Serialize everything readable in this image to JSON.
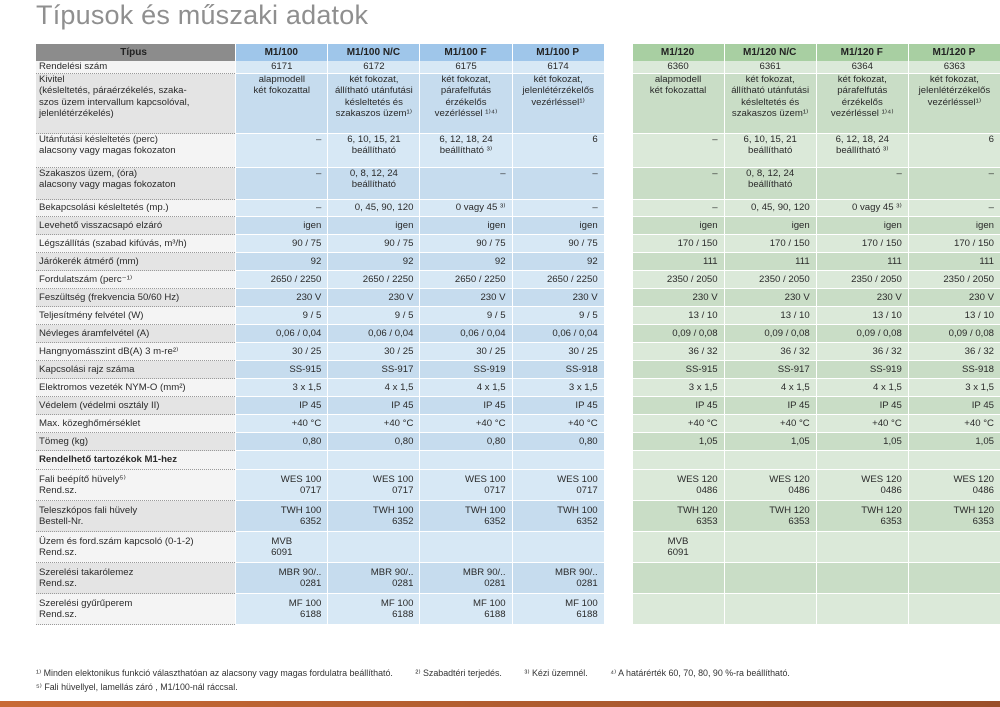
{
  "title": "Típusok és műszaki adatok",
  "header": {
    "label": "Típus",
    "blue": [
      "M1/100",
      "M1/100 N/C",
      "M1/100 F",
      "M1/100 P"
    ],
    "green": [
      "M1/120",
      "M1/120 N/C",
      "M1/120 F",
      "M1/120 P"
    ]
  },
  "rows": [
    {
      "label": [
        "Rendelési szám"
      ],
      "blue": [
        [
          "6171"
        ],
        [
          "6172"
        ],
        [
          "6175"
        ],
        [
          "6174"
        ]
      ],
      "green": [
        [
          "6360"
        ],
        [
          "6361"
        ],
        [
          "6364"
        ],
        [
          "6363"
        ]
      ],
      "center": true
    },
    {
      "label": [
        "Kivitel",
        "(késleltetés, páraérzékelés, szaka-",
        "szos üzem intervallum kapcsolóval,",
        "jelenlétérzékelés)"
      ],
      "blue": [
        [
          "alapmodell",
          "két fokozattal"
        ],
        [
          "két fokozat,",
          "állítható utánfutási",
          "késleltetés és",
          "szakaszos üzem¹⁾"
        ],
        [
          "két fokozat,",
          "párafelfutás",
          "érzékelős",
          "vezérléssel ¹⁾⁴⁾"
        ],
        [
          "két fokozat,",
          "jelenlétérzékelős",
          "vezérléssel¹⁾"
        ]
      ],
      "green": [
        [
          "alapmodell",
          "két fokozattal"
        ],
        [
          "két fokozat,",
          "állítható utánfutási",
          "késleltetés és",
          "szakaszos üzem¹⁾"
        ],
        [
          "két fokozat,",
          "párafelfutás",
          "érzékelős",
          "vezérléssel ¹⁾⁴⁾"
        ],
        [
          "két fokozat,",
          "jelenlétérzékelős",
          "vezérléssel¹⁾"
        ]
      ],
      "center": true,
      "top": true
    },
    {
      "label": [
        "Utánfutási késleltetés (perc)",
        "alacsony vagy magas fokozaton"
      ],
      "blue": [
        [
          "–"
        ],
        [
          "6, 10, 15, 21",
          "beállítható"
        ],
        [
          "6, 12, 18, 24",
          "beállítható ³⁾"
        ],
        [
          "6"
        ]
      ],
      "green": [
        [
          "–"
        ],
        [
          "6, 10, 15, 21",
          "beállítható"
        ],
        [
          "6, 12, 18, 24",
          "beállítható ³⁾"
        ],
        [
          "6"
        ]
      ],
      "top": true
    },
    {
      "label": [
        "Szakaszos üzem, (óra)",
        "alacsony vagy magas fokozaton"
      ],
      "blue": [
        [
          "–"
        ],
        [
          "0, 8, 12, 24",
          "beállítható"
        ],
        [
          "–"
        ],
        [
          "–"
        ]
      ],
      "green": [
        [
          "–"
        ],
        [
          "0, 8, 12, 24",
          "beállítható"
        ],
        [
          "–"
        ],
        [
          "–"
        ]
      ],
      "top": true
    },
    {
      "label": [
        "Bekapcsolási késleltetés (mp.)"
      ],
      "blue": [
        [
          "–"
        ],
        [
          "0, 45, 90, 120"
        ],
        [
          "0 vagy 45 ³⁾"
        ],
        [
          "–"
        ]
      ],
      "green": [
        [
          "–"
        ],
        [
          "0, 45, 90, 120"
        ],
        [
          "0 vagy 45 ³⁾"
        ],
        [
          "–"
        ]
      ]
    },
    {
      "label": [
        "Levehető visszacsapó elzáró"
      ],
      "blue": [
        [
          "igen"
        ],
        [
          "igen"
        ],
        [
          "igen"
        ],
        [
          "igen"
        ]
      ],
      "green": [
        [
          "igen"
        ],
        [
          "igen"
        ],
        [
          "igen"
        ],
        [
          "igen"
        ]
      ],
      "leftish": true
    },
    {
      "label": [
        "Légszállítás (szabad kifúvás, m³/h)"
      ],
      "blue": [
        [
          "90 / 75"
        ],
        [
          "90 / 75"
        ],
        [
          "90 / 75"
        ],
        [
          "90 / 75"
        ]
      ],
      "green": [
        [
          "170 / 150"
        ],
        [
          "170 / 150"
        ],
        [
          "170 / 150"
        ],
        [
          "170 / 150"
        ]
      ]
    },
    {
      "label": [
        "Járókerék átmérő (mm)"
      ],
      "blue": [
        [
          "92"
        ],
        [
          "92"
        ],
        [
          "92"
        ],
        [
          "92"
        ]
      ],
      "green": [
        [
          "111"
        ],
        [
          "111"
        ],
        [
          "111"
        ],
        [
          "111"
        ]
      ]
    },
    {
      "label": [
        "Fordulatszám (perc⁻¹⁾"
      ],
      "blue": [
        [
          "2650 / 2250"
        ],
        [
          "2650 / 2250"
        ],
        [
          "2650 / 2250"
        ],
        [
          "2650 / 2250"
        ]
      ],
      "green": [
        [
          "2350 / 2050"
        ],
        [
          "2350 / 2050"
        ],
        [
          "2350 / 2050"
        ],
        [
          "2350 / 2050"
        ]
      ]
    },
    {
      "label": [
        "Feszültség (frekvencia 50/60 Hz)"
      ],
      "blue": [
        [
          "230 V"
        ],
        [
          "230 V"
        ],
        [
          "230 V"
        ],
        [
          "230 V"
        ]
      ],
      "green": [
        [
          "230 V"
        ],
        [
          "230 V"
        ],
        [
          "230 V"
        ],
        [
          "230 V"
        ]
      ]
    },
    {
      "label": [
        "Teljesítmény felvétel (W)"
      ],
      "blue": [
        [
          "9 / 5"
        ],
        [
          "9 / 5"
        ],
        [
          "9 / 5"
        ],
        [
          "9 / 5"
        ]
      ],
      "green": [
        [
          "13 / 10"
        ],
        [
          "13 / 10"
        ],
        [
          "13 / 10"
        ],
        [
          "13 / 10"
        ]
      ]
    },
    {
      "label": [
        "Névleges áramfelvétel (A)"
      ],
      "blue": [
        [
          "0,06 / 0,04"
        ],
        [
          "0,06 / 0,04"
        ],
        [
          "0,06 / 0,04"
        ],
        [
          "0,06 / 0,04"
        ]
      ],
      "green": [
        [
          "0,09 / 0,08"
        ],
        [
          "0,09 / 0,08"
        ],
        [
          "0,09 / 0,08"
        ],
        [
          "0,09 / 0,08"
        ]
      ]
    },
    {
      "label": [
        "Hangnyomásszint dB(A) 3 m-re²⁾"
      ],
      "blue": [
        [
          "30 / 25"
        ],
        [
          "30 / 25"
        ],
        [
          "30 / 25"
        ],
        [
          "30 / 25"
        ]
      ],
      "green": [
        [
          "36 / 32"
        ],
        [
          "36 / 32"
        ],
        [
          "36 / 32"
        ],
        [
          "36 / 32"
        ]
      ]
    },
    {
      "label": [
        "Kapcsolási rajz száma"
      ],
      "blue": [
        [
          "SS-915"
        ],
        [
          "SS-917"
        ],
        [
          "SS-919"
        ],
        [
          "SS-918"
        ]
      ],
      "green": [
        [
          "SS-915"
        ],
        [
          "SS-917"
        ],
        [
          "SS-919"
        ],
        [
          "SS-918"
        ]
      ]
    },
    {
      "label": [
        "Elektromos vezeték NYM-O (mm²)"
      ],
      "blue": [
        [
          "3 x 1,5"
        ],
        [
          "4 x 1,5"
        ],
        [
          "4 x 1,5"
        ],
        [
          "3 x 1,5"
        ]
      ],
      "green": [
        [
          "3 x 1,5"
        ],
        [
          "4 x 1,5"
        ],
        [
          "4 x 1,5"
        ],
        [
          "3 x 1,5"
        ]
      ]
    },
    {
      "label": [
        "Védelem (védelmi osztály II)"
      ],
      "blue": [
        [
          "IP 45"
        ],
        [
          "IP 45"
        ],
        [
          "IP 45"
        ],
        [
          "IP 45"
        ]
      ],
      "green": [
        [
          "IP 45"
        ],
        [
          "IP 45"
        ],
        [
          "IP 45"
        ],
        [
          "IP 45"
        ]
      ]
    },
    {
      "label": [
        "Max. közeghőmérséklet"
      ],
      "blue": [
        [
          "+40 °C"
        ],
        [
          "+40 °C"
        ],
        [
          "+40 °C"
        ],
        [
          "+40 °C"
        ]
      ],
      "green": [
        [
          "+40 °C"
        ],
        [
          "+40 °C"
        ],
        [
          "+40 °C"
        ],
        [
          "+40 °C"
        ]
      ]
    },
    {
      "label": [
        "Tömeg (kg)"
      ],
      "blue": [
        [
          "0,80"
        ],
        [
          "0,80"
        ],
        [
          "0,80"
        ],
        [
          "0,80"
        ]
      ],
      "green": [
        [
          "1,05"
        ],
        [
          "1,05"
        ],
        [
          "1,05"
        ],
        [
          "1,05"
        ]
      ]
    }
  ],
  "section_title": "Rendelhető tartozékok M1-hez",
  "accessories": [
    {
      "label": [
        "Fali beépítő hüvely⁵⁾",
        "Rend.sz."
      ],
      "blue": [
        [
          "WES 100",
          "0717"
        ],
        [
          "WES 100",
          "0717"
        ],
        [
          "WES 100",
          "0717"
        ],
        [
          "WES 100",
          "0717"
        ]
      ],
      "green": [
        [
          "WES 120",
          "0486"
        ],
        [
          "WES 120",
          "0486"
        ],
        [
          "WES 120",
          "0486"
        ],
        [
          "WES 120",
          "0486"
        ]
      ]
    },
    {
      "label": [
        "Teleszkópos fali hüvely",
        "Bestell-Nr."
      ],
      "blue": [
        [
          "TWH 100",
          "6352"
        ],
        [
          "TWH 100",
          "6352"
        ],
        [
          "TWH 100",
          "6352"
        ],
        [
          "TWH 100",
          "6352"
        ]
      ],
      "green": [
        [
          "TWH 120",
          "6353"
        ],
        [
          "TWH 120",
          "6353"
        ],
        [
          "TWH 120",
          "6353"
        ],
        [
          "TWH 120",
          "6353"
        ]
      ]
    },
    {
      "label": [
        "Üzem és ford.szám kapcsoló (0-1-2)",
        "Rend.sz."
      ],
      "blue": [
        [
          "MVB",
          "6091"
        ],
        [
          ""
        ],
        [
          ""
        ],
        [
          ""
        ]
      ],
      "green": [
        [
          "MVB",
          "6091"
        ],
        [
          ""
        ],
        [
          ""
        ],
        [
          ""
        ]
      ],
      "center_first": true
    },
    {
      "label": [
        "Szerelési takarólemez",
        "Rend.sz."
      ],
      "blue": [
        [
          "MBR 90/..",
          "0281"
        ],
        [
          "MBR 90/..",
          "0281"
        ],
        [
          "MBR 90/..",
          "0281"
        ],
        [
          "MBR 90/..",
          "0281"
        ]
      ],
      "green": [
        [
          ""
        ],
        [
          ""
        ],
        [
          ""
        ],
        [
          ""
        ]
      ]
    },
    {
      "label": [
        "Szerelési gyűrűperem",
        "Rend.sz."
      ],
      "blue": [
        [
          "MF 100",
          "6188"
        ],
        [
          "MF 100",
          "6188"
        ],
        [
          "MF 100",
          "6188"
        ],
        [
          "MF 100",
          "6188"
        ]
      ],
      "green": [
        [
          ""
        ],
        [
          ""
        ],
        [
          ""
        ],
        [
          ""
        ]
      ]
    }
  ],
  "footnotes": [
    "¹⁾ Minden elektonikus funkció választhatóan az alacsony vagy magas fordulatra beállítható.",
    "²⁾ Szabadtéri terjedés.",
    "³⁾ Kézi üzemnél.",
    "⁴⁾ A határérték  60, 70, 80, 90 %-ra beállítható.",
    "⁵⁾ Fali hüvellyel, lamellás záró , M1/100-nál ráccsal."
  ],
  "colors": {
    "blue_header": "#9fc6ea",
    "green_header": "#a8cfa2",
    "blue_cell": "#d7e8f5",
    "green_cell": "#dbe9d9",
    "title": "#8f8f8f"
  }
}
